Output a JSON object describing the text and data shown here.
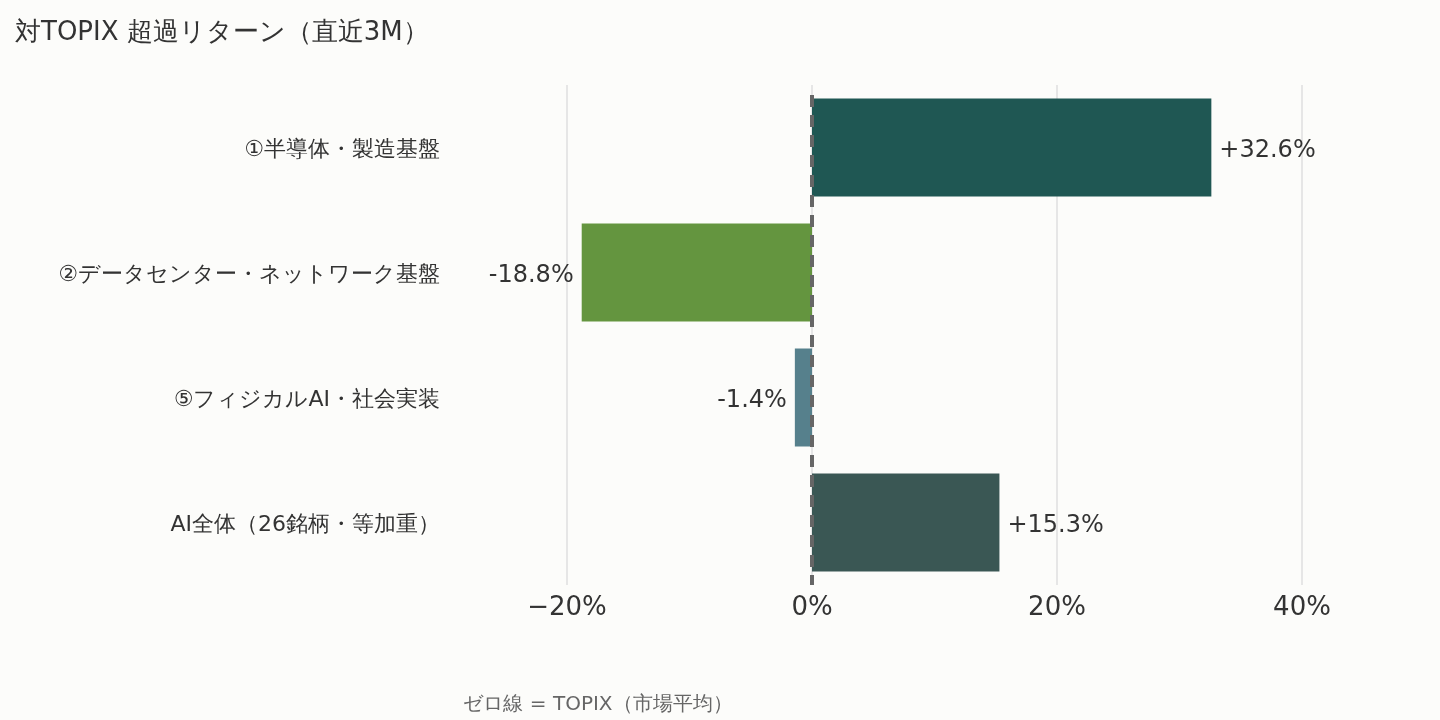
{
  "chart_data": {
    "type": "bar",
    "orientation": "horizontal",
    "title": "対TOPIX 超過リターン（直近3M）",
    "categories": [
      "①半導体・製造基盤",
      "②データセンター・ネットワーク基盤",
      "⑤フィジカルAI・社会実装",
      "AI全体（26銘柄・等加重）"
    ],
    "values": [
      32.6,
      -18.8,
      -1.4,
      15.3
    ],
    "colors": [
      "#1f5753",
      "#64953f",
      "#56808c",
      "#3a5754"
    ],
    "value_labels": [
      "+32.6%",
      "-18.8%",
      "-1.4%",
      "+15.3%"
    ],
    "xlim": [
      -20,
      40
    ],
    "xticks": [
      {
        "value": -20,
        "label": "−20%"
      },
      {
        "value": 0,
        "label": "0%"
      },
      {
        "value": 20,
        "label": "20%"
      },
      {
        "value": 40,
        "label": "40%"
      }
    ],
    "grid": "x",
    "ref_lines": [
      {
        "axis": "x",
        "value": 0,
        "color": "#666666",
        "line_style": "dashed"
      }
    ],
    "annotations": [
      "ゼロ線 = TOPIX（市場平均）"
    ]
  }
}
